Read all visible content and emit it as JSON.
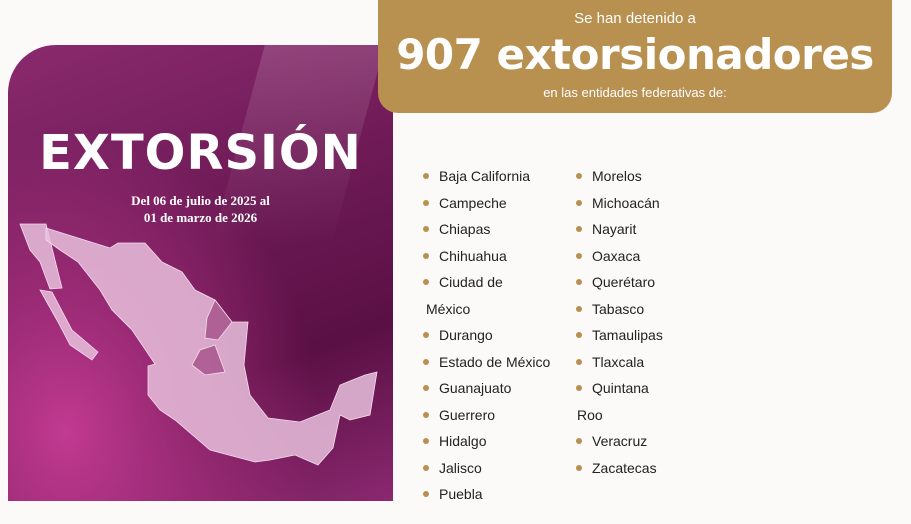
{
  "banner": {
    "line1": "Se han detenido a",
    "headline": "907 extorsionadores",
    "line3": "en las entidades federativas de:",
    "color": "#b8904f"
  },
  "panel": {
    "title": "EXTORSIÓN",
    "date_line1": "Del 06 de julio de 2025 al",
    "date_line2": "01 de marzo de 2026",
    "color": "#6e1a56"
  },
  "states_col1": [
    {
      "label": "Baja California"
    },
    {
      "label": "Campeche"
    },
    {
      "label": "Chiapas"
    },
    {
      "label": "Chihuahua"
    },
    {
      "label": "Ciudad de",
      "cont": "México"
    },
    {
      "label": "Durango"
    },
    {
      "label": "Estado de México"
    },
    {
      "label": "Guanajuato"
    },
    {
      "label": "Guerrero"
    },
    {
      "label": "Hidalgo"
    },
    {
      "label": "Jalisco"
    },
    {
      "label": "Puebla"
    }
  ],
  "states_col2": [
    {
      "label": "Morelos"
    },
    {
      "label": "Michoacán"
    },
    {
      "label": "Nayarit"
    },
    {
      "label": "Oaxaca"
    },
    {
      "label": "Querétaro"
    },
    {
      "label": "Tabasco"
    },
    {
      "label": "Tamaulipas"
    },
    {
      "label": "Tlaxcala"
    },
    {
      "label": "Quintana",
      "cont": "Roo"
    },
    {
      "label": "Veracruz"
    },
    {
      "label": "Zacatecas"
    }
  ]
}
